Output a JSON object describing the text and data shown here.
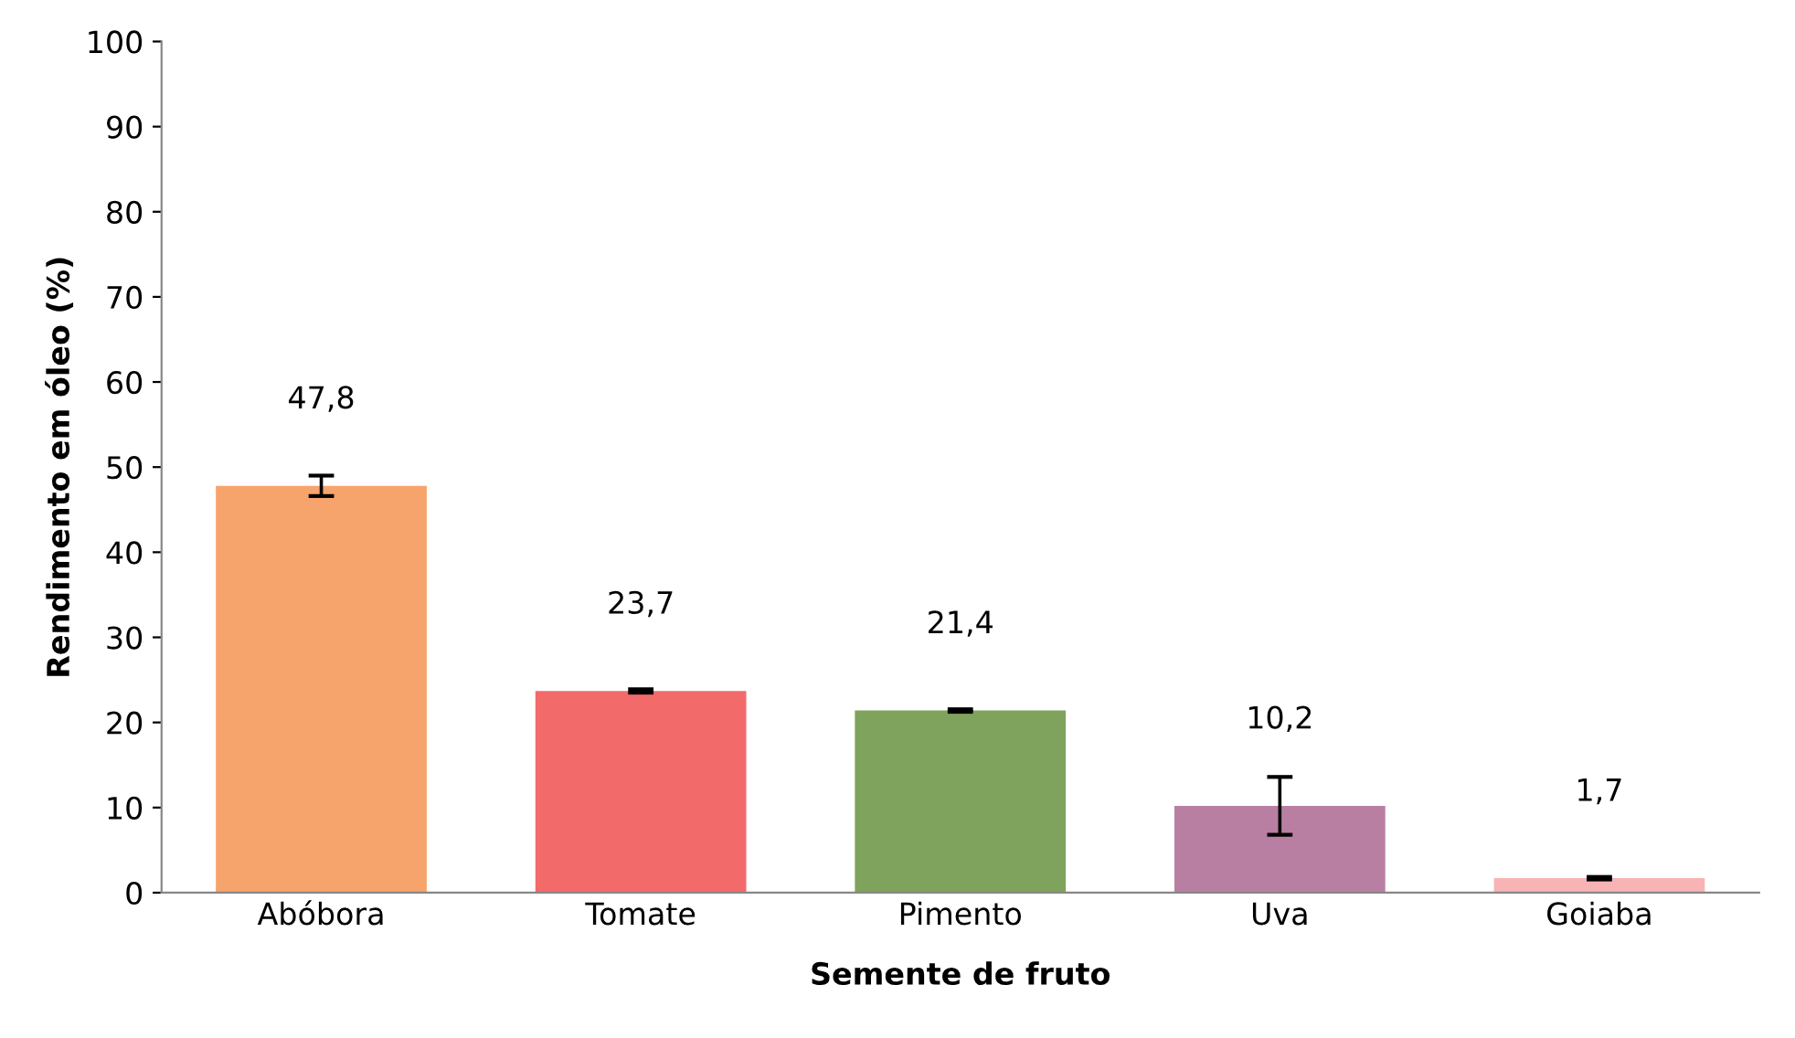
{
  "chart_data": {
    "type": "bar",
    "xlabel": "Semente de fruto",
    "ylabel": "Rendimento em óleo (%)",
    "categories": [
      "Abóbora",
      "Tomate",
      "Pimento",
      "Uva",
      "Goiaba"
    ],
    "values": [
      47.8,
      23.7,
      21.4,
      10.2,
      1.7
    ],
    "value_labels": [
      "47,8",
      "23,7",
      "21,4",
      "10,2",
      "1,7"
    ],
    "errors": [
      1.2,
      0.2,
      0.15,
      3.4,
      0.15
    ],
    "colors": [
      "#f7a36c",
      "#f36a6a",
      "#7fa35c",
      "#b97fa3",
      "#f8b4b4"
    ],
    "ylim": [
      0,
      100
    ],
    "yticks": [
      0,
      10,
      20,
      30,
      40,
      50,
      60,
      70,
      80,
      90,
      100
    ],
    "grid": false,
    "legend": false
  }
}
